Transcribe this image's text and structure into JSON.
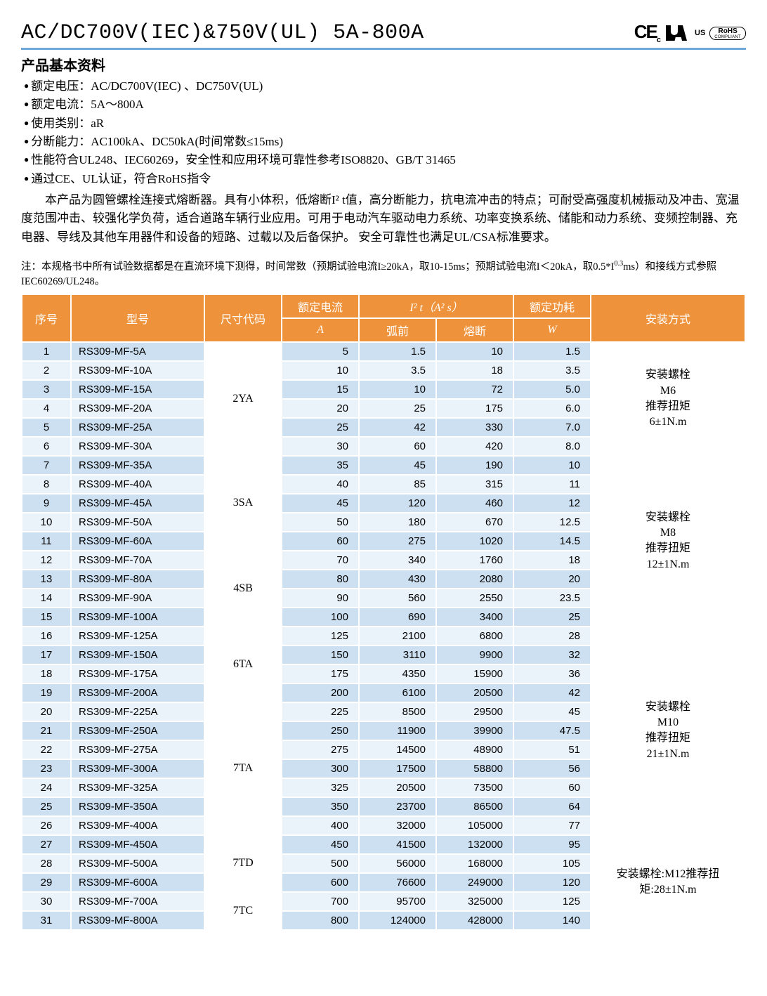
{
  "header": {
    "title": "AC/DC700V(IEC)&750V(UL)  5A-800A",
    "cert_ce": "CE",
    "cert_c": "c",
    "cert_us": "US",
    "cert_rohs1": "RoHS",
    "cert_rohs2": "COMPLIANT"
  },
  "section_title": "产品基本资料",
  "specs": [
    "额定电压：AC/DC700V(IEC) 、DC750V(UL)",
    "额定电流：5A～800A",
    "使用类别：aR",
    "分断能力：AC100kA、DC50kA(时间常数≤15ms)",
    "性能符合UL248、IEC60269，安全性和应用环境可靠性参考ISO8820、GB/T 31465",
    "通过CE、UL认证，符合RoHS指令"
  ],
  "desc": "本产品为圆管螺栓连接式熔断器。具有小体积，低熔断I² t值，高分断能力，抗电流冲击的特点；可耐受高强度机械振动及冲击、宽温度范围冲击、较强化学负荷，适合道路车辆行业应用。可用于电动汽车驱动电力系统、功率变换系统、储能和动力系统、变频控制器、充电器、导线及其他车用器件和设备的短路、过载以及后备保护。 安全可靠性也满足UL/CSA标准要求。",
  "note_prefix": "注：本规格书中所有试验数据都是在直流环境下测得，时间常数（预期试验电流I≥20kA，取10-15ms；预期试验电流I＜20kA，取0.5*I",
  "note_exp": "0.3",
  "note_suffix": "ms）和接线方式参照IEC60269/UL248。",
  "columns": {
    "seq": "序号",
    "model": "型号",
    "size": "尺寸代码",
    "rated_current_top": "额定电流",
    "rated_current_unit": "A",
    "i2t_top": "I² t（A² s）",
    "i2t_prearc": "弧前",
    "i2t_melt": "熔断",
    "power_top": "额定功耗",
    "power_unit": "W",
    "install": "安装方式"
  },
  "size_groups": [
    {
      "code": "2YA",
      "start": 1,
      "span": 6,
      "install": "安装螺栓\nM6\n推荐扭矩\n6±1N.m",
      "install_span": 6
    },
    {
      "code": "3SA",
      "start": 7,
      "span": 5,
      "install": "安装螺栓\nM8\n推荐扭矩\n12±1N.m",
      "install_span": 9
    },
    {
      "code": "4SB",
      "start": 12,
      "span": 4
    },
    {
      "code": "6TA",
      "start": 16,
      "span": 4,
      "install": "安装螺栓\nM10\n推荐扭矩\n21±1N.m",
      "install_span": 11
    },
    {
      "code": "7TA",
      "start": 20,
      "span": 7
    },
    {
      "code": "7TD",
      "start": 27,
      "span": 3,
      "install": "安装螺栓:M12推荐扭矩:28±1N.m",
      "install_span": 5
    },
    {
      "code": "7TC",
      "start": 30,
      "span": 2
    }
  ],
  "rows": [
    {
      "seq": 1,
      "model": "RS309-MF-5A",
      "current": "5",
      "prearc": "1.5",
      "melt": "10",
      "power": "1.5"
    },
    {
      "seq": 2,
      "model": "RS309-MF-10A",
      "current": "10",
      "prearc": "3.5",
      "melt": "18",
      "power": "3.5"
    },
    {
      "seq": 3,
      "model": "RS309-MF-15A",
      "current": "15",
      "prearc": "10",
      "melt": "72",
      "power": "5.0"
    },
    {
      "seq": 4,
      "model": "RS309-MF-20A",
      "current": "20",
      "prearc": "25",
      "melt": "175",
      "power": "6.0"
    },
    {
      "seq": 5,
      "model": "RS309-MF-25A",
      "current": "25",
      "prearc": "42",
      "melt": "330",
      "power": "7.0"
    },
    {
      "seq": 6,
      "model": "RS309-MF-30A",
      "current": "30",
      "prearc": "60",
      "melt": "420",
      "power": "8.0"
    },
    {
      "seq": 7,
      "model": "RS309-MF-35A",
      "current": "35",
      "prearc": "45",
      "melt": "190",
      "power": "10"
    },
    {
      "seq": 8,
      "model": "RS309-MF-40A",
      "current": "40",
      "prearc": "85",
      "melt": "315",
      "power": "11"
    },
    {
      "seq": 9,
      "model": "RS309-MF-45A",
      "current": "45",
      "prearc": "120",
      "melt": "460",
      "power": "12"
    },
    {
      "seq": 10,
      "model": "RS309-MF-50A",
      "current": "50",
      "prearc": "180",
      "melt": "670",
      "power": "12.5"
    },
    {
      "seq": 11,
      "model": "RS309-MF-60A",
      "current": "60",
      "prearc": "275",
      "melt": "1020",
      "power": "14.5"
    },
    {
      "seq": 12,
      "model": "RS309-MF-70A",
      "current": "70",
      "prearc": "340",
      "melt": "1760",
      "power": "18"
    },
    {
      "seq": 13,
      "model": "RS309-MF-80A",
      "current": "80",
      "prearc": "430",
      "melt": "2080",
      "power": "20"
    },
    {
      "seq": 14,
      "model": "RS309-MF-90A",
      "current": "90",
      "prearc": "560",
      "melt": "2550",
      "power": "23.5"
    },
    {
      "seq": 15,
      "model": "RS309-MF-100A",
      "current": "100",
      "prearc": "690",
      "melt": "3400",
      "power": "25"
    },
    {
      "seq": 16,
      "model": "RS309-MF-125A",
      "current": "125",
      "prearc": "2100",
      "melt": "6800",
      "power": "28"
    },
    {
      "seq": 17,
      "model": "RS309-MF-150A",
      "current": "150",
      "prearc": "3110",
      "melt": "9900",
      "power": "32"
    },
    {
      "seq": 18,
      "model": "RS309-MF-175A",
      "current": "175",
      "prearc": "4350",
      "melt": "15900",
      "power": "36"
    },
    {
      "seq": 19,
      "model": "RS309-MF-200A",
      "current": "200",
      "prearc": "6100",
      "melt": "20500",
      "power": "42"
    },
    {
      "seq": 20,
      "model": "RS309-MF-225A",
      "current": "225",
      "prearc": "8500",
      "melt": "29500",
      "power": "45"
    },
    {
      "seq": 21,
      "model": "RS309-MF-250A",
      "current": "250",
      "prearc": "11900",
      "melt": "39900",
      "power": "47.5"
    },
    {
      "seq": 22,
      "model": "RS309-MF-275A",
      "current": "275",
      "prearc": "14500",
      "melt": "48900",
      "power": "51"
    },
    {
      "seq": 23,
      "model": "RS309-MF-300A",
      "current": "300",
      "prearc": "17500",
      "melt": "58800",
      "power": "56"
    },
    {
      "seq": 24,
      "model": "RS309-MF-325A",
      "current": "325",
      "prearc": "20500",
      "melt": "73500",
      "power": "60"
    },
    {
      "seq": 25,
      "model": "RS309-MF-350A",
      "current": "350",
      "prearc": "23700",
      "melt": "86500",
      "power": "64"
    },
    {
      "seq": 26,
      "model": "RS309-MF-400A",
      "current": "400",
      "prearc": "32000",
      "melt": "105000",
      "power": "77"
    },
    {
      "seq": 27,
      "model": "RS309-MF-450A",
      "current": "450",
      "prearc": "41500",
      "melt": "132000",
      "power": "95"
    },
    {
      "seq": 28,
      "model": "RS309-MF-500A",
      "current": "500",
      "prearc": "56000",
      "melt": "168000",
      "power": "105"
    },
    {
      "seq": 29,
      "model": "RS309-MF-600A",
      "current": "600",
      "prearc": "76600",
      "melt": "249000",
      "power": "120"
    },
    {
      "seq": 30,
      "model": "RS309-MF-700A",
      "current": "700",
      "prearc": "95700",
      "melt": "325000",
      "power": "125"
    },
    {
      "seq": 31,
      "model": "RS309-MF-800A",
      "current": "800",
      "prearc": "124000",
      "melt": "428000",
      "power": "140"
    }
  ],
  "style": {
    "header_bg": "#ee933b",
    "header_fg": "#ffffff",
    "row_odd_bg": "#cce0f1",
    "row_even_bg": "#eaf2fa",
    "underline_color": "#6fa7d9"
  }
}
